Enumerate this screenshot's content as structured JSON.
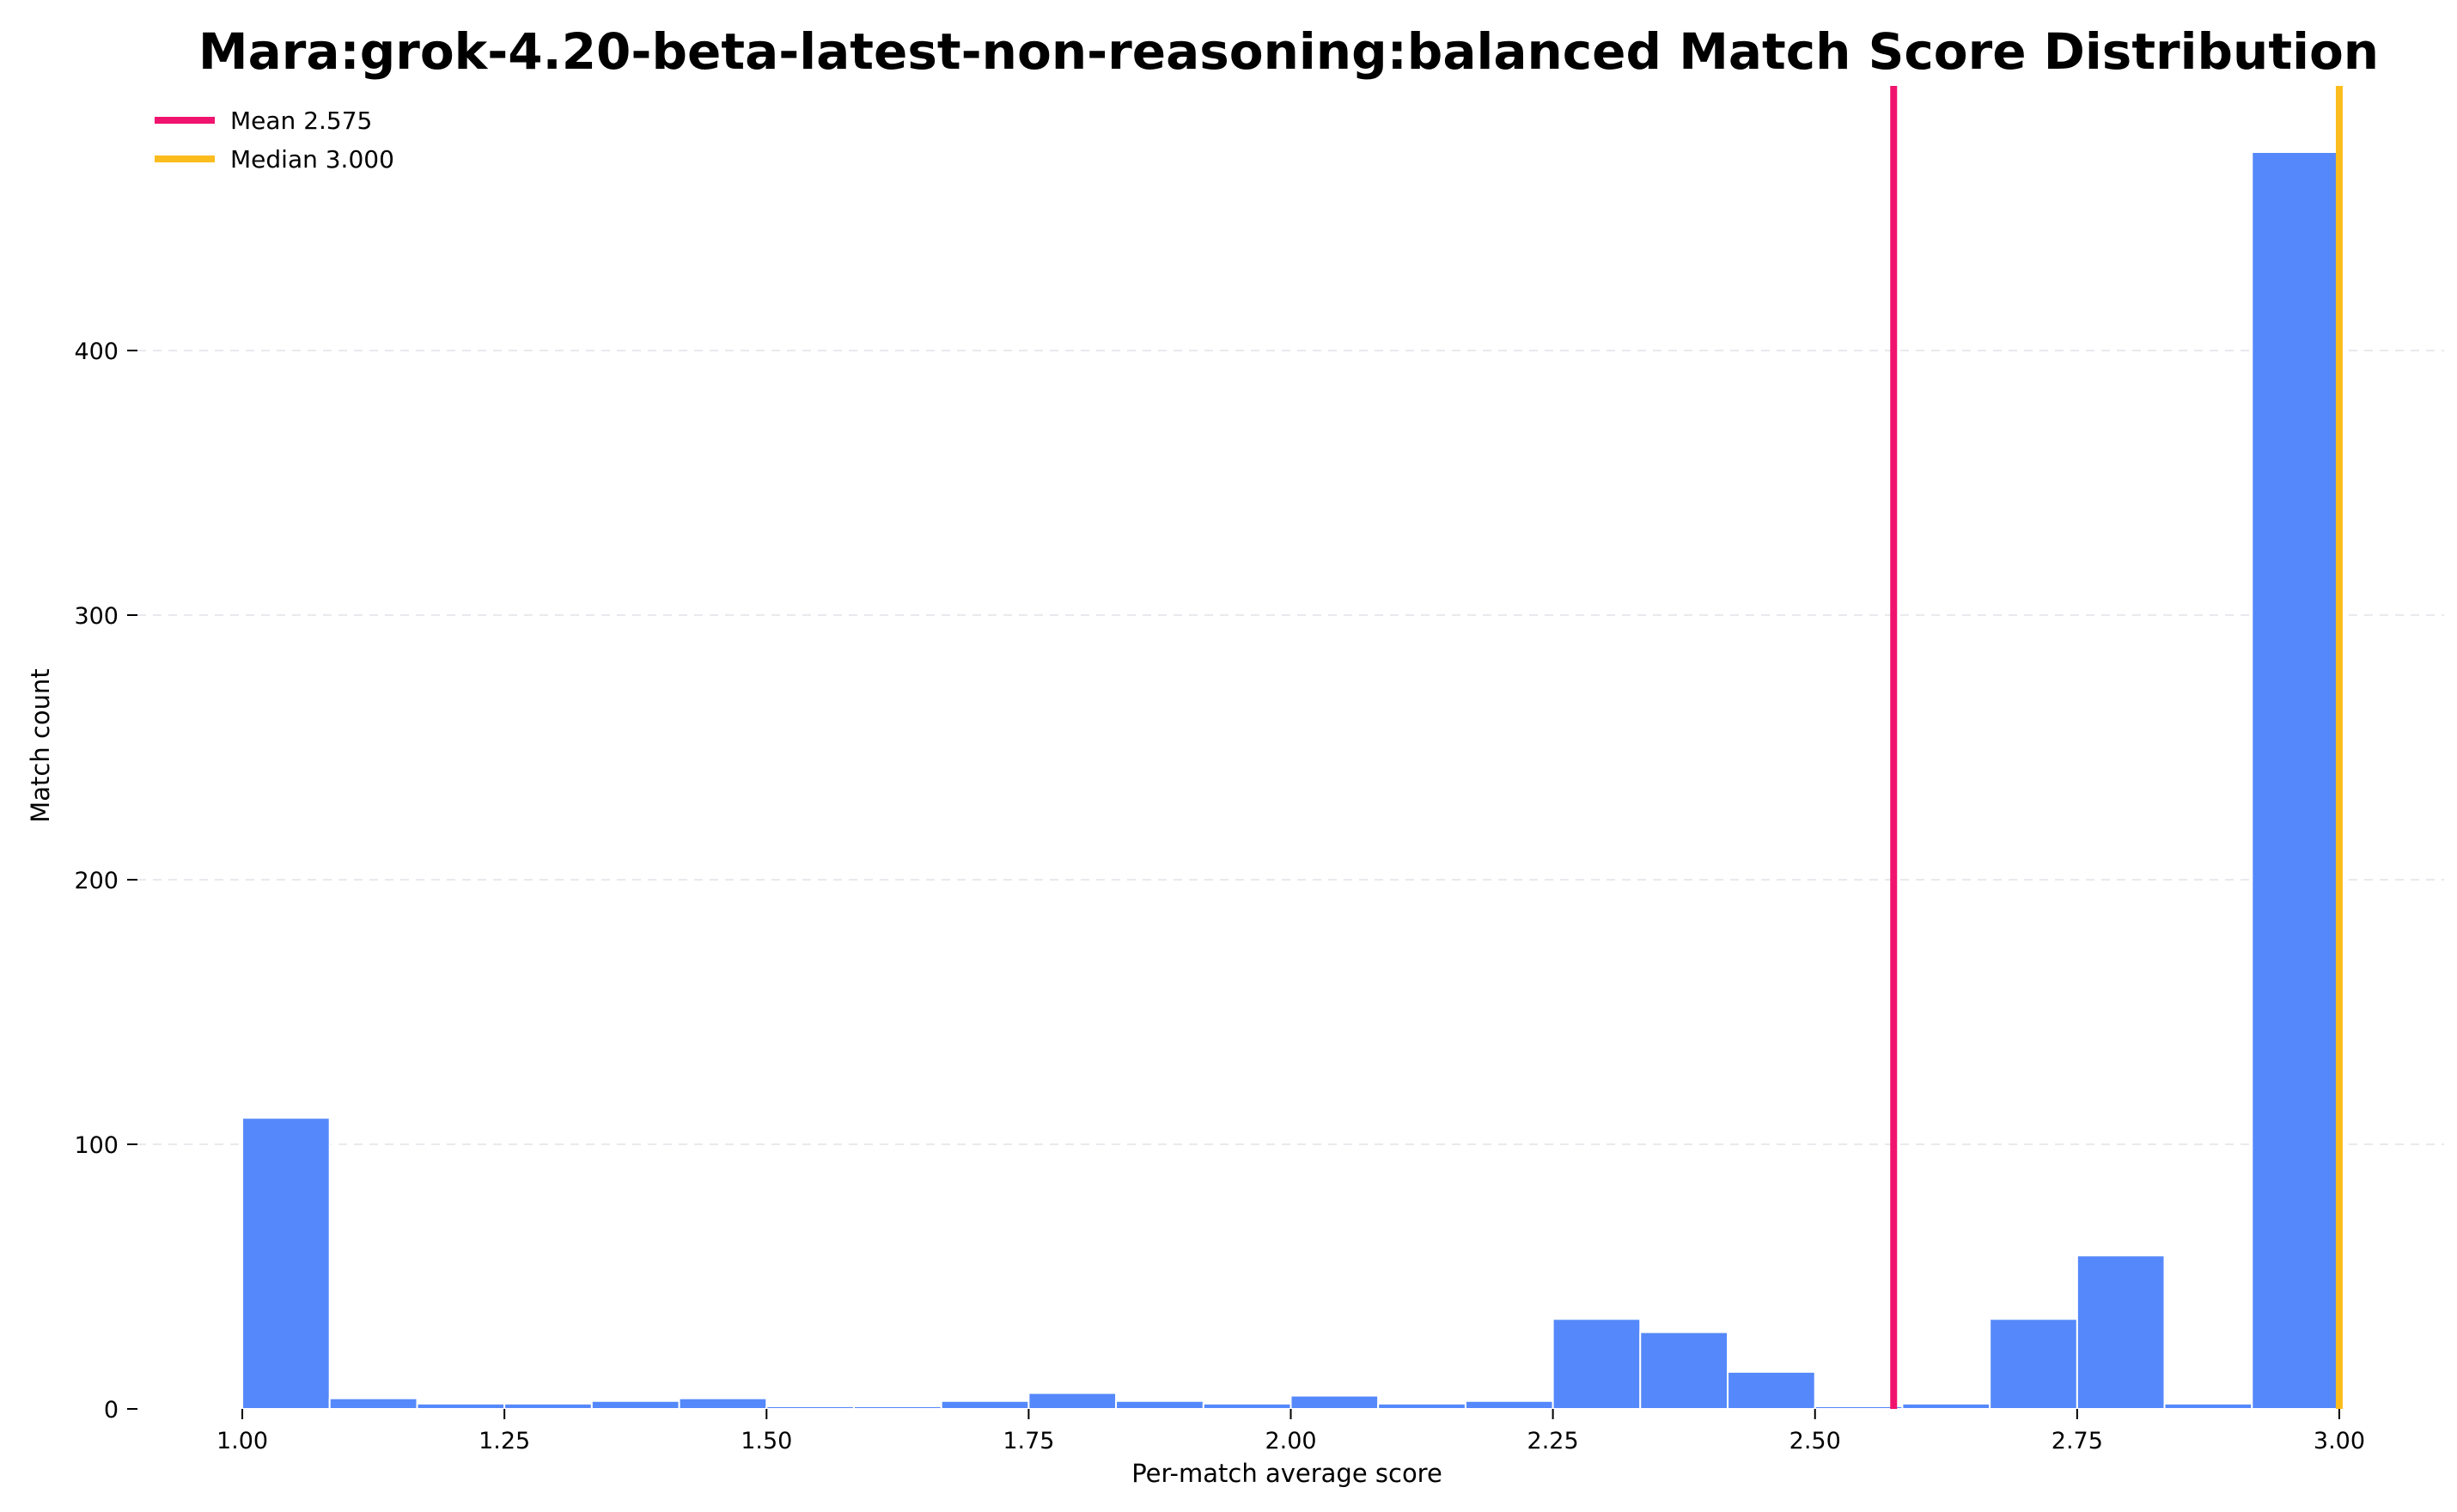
{
  "chart_data": {
    "type": "bar",
    "title": "Mara:grok-4.20-beta-latest-non-reasoning:balanced Match Score Distribution",
    "xlabel": "Per-match average score",
    "ylabel": "Match count",
    "xlim": [
      0.9,
      3.1
    ],
    "ylim": [
      0,
      500
    ],
    "xticks": [
      "1.00",
      "1.25",
      "1.50",
      "1.75",
      "2.00",
      "2.25",
      "2.50",
      "2.75",
      "3.00"
    ],
    "yticks": [
      "0",
      "100",
      "200",
      "300",
      "400"
    ],
    "grid": true,
    "legend_position": "top-left",
    "bin_edges": [
      1.0,
      1.0833,
      1.1667,
      1.25,
      1.3333,
      1.4167,
      1.5,
      1.5833,
      1.6667,
      1.75,
      1.8333,
      1.9167,
      2.0,
      2.0833,
      2.1667,
      2.25,
      2.3333,
      2.4167,
      2.5,
      2.5833,
      2.6667,
      2.75,
      2.8333,
      2.9167,
      3.0
    ],
    "counts": [
      110,
      4,
      2,
      2,
      3,
      4,
      1,
      1,
      3,
      6,
      3,
      2,
      5,
      2,
      3,
      34,
      29,
      14,
      1,
      2,
      34,
      58,
      2,
      475
    ],
    "bar_color": "#5588fa",
    "lines": [
      {
        "label": "Mean 2.575",
        "value": 2.575,
        "color": "#f0146e"
      },
      {
        "label": "Median 3.000",
        "value": 3.0,
        "color": "#fbbc1e"
      }
    ]
  }
}
